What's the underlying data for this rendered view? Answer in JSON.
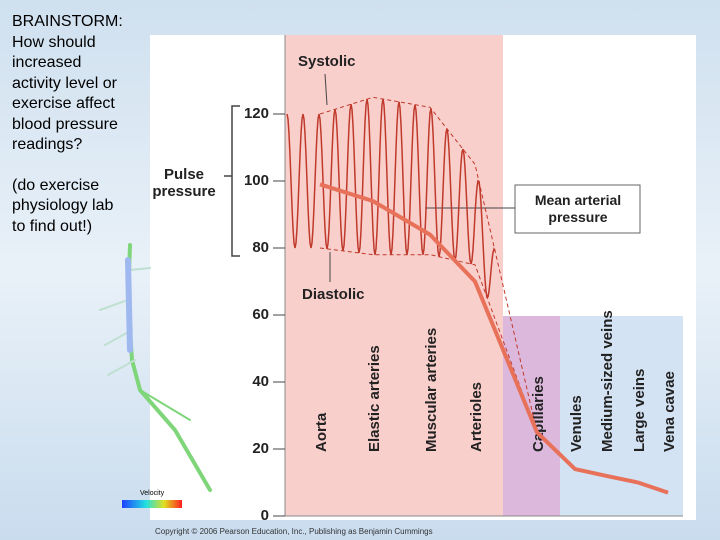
{
  "slide_text": [
    "BRAINSTORM:",
    "How should",
    "increased",
    "activity level or",
    "exercise affect",
    "blood pressure",
    "readings?",
    "(do exercise",
    "physiology lab",
    "to find out!)"
  ],
  "chart_data": {
    "type": "line",
    "categories": [
      "Aorta",
      "Elastic arteries",
      "Muscular arteries",
      "Arterioles",
      "Capillaries",
      "Venules",
      "Medium-sized veins",
      "Large veins",
      "Vena cavae"
    ],
    "series": [
      {
        "name": "Systolic",
        "color": "#c0392b",
        "values": [
          120,
          125,
          122,
          105,
          25,
          14,
          12,
          10,
          7
        ]
      },
      {
        "name": "Diastolic",
        "color": "#c0392b",
        "values": [
          80,
          78,
          78,
          75,
          25,
          14,
          12,
          10,
          7
        ]
      },
      {
        "name": "Mean arterial pressure",
        "color": "#e8715a",
        "values": [
          99,
          94,
          84,
          70,
          25,
          14,
          12,
          10,
          7
        ]
      }
    ],
    "annotations": [
      "Pulse pressure"
    ],
    "ylim": [
      0,
      140
    ],
    "yticks": [
      0,
      20,
      40,
      60,
      80,
      100,
      120
    ],
    "legend_note": "Velocity",
    "copyright": "Copyright © 2006 Pearson Education, Inc., Publishing as Benjamin Cummings"
  }
}
